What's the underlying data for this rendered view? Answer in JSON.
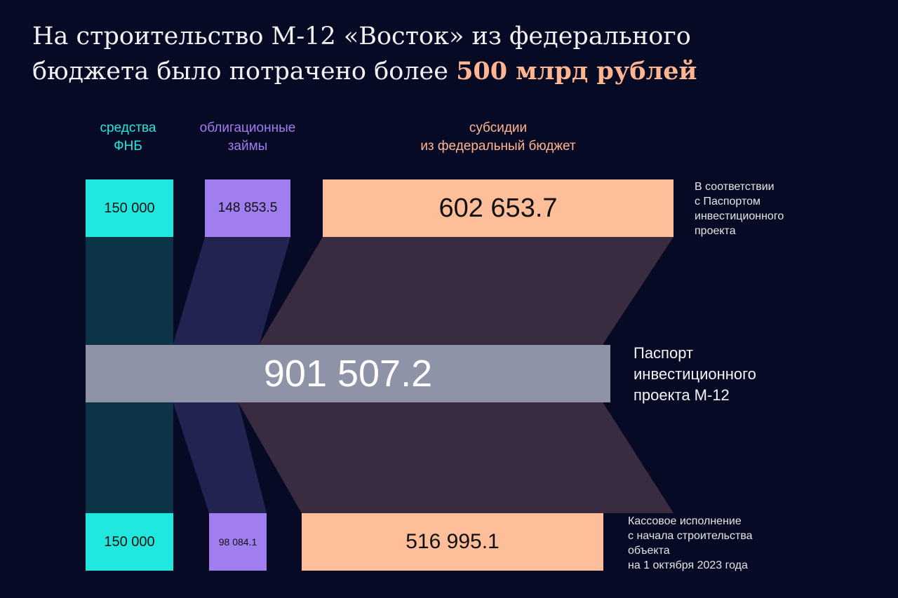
{
  "title": {
    "line1": "На строительство М-12 «Восток» из федерального",
    "line2_prefix": "бюджета было потрачено более ",
    "highlight": "500 млрд рублей"
  },
  "categories": {
    "fnb": {
      "line1": "средства",
      "line2": "ФНБ"
    },
    "bonds": {
      "line1": "облигационные",
      "line2": "займы"
    },
    "subsidies": {
      "line1": "субсидии",
      "line2": "из федеральный бюджет"
    }
  },
  "passport": {
    "fnb": "150 000",
    "bonds": "148 853.5",
    "subsidies": "602 653.7"
  },
  "total": {
    "value": "901 507.2",
    "label_line1": "Паспорт",
    "label_line2": "инвестиционного",
    "label_line3": "проекта М-12"
  },
  "actual": {
    "fnb": "150 000",
    "bonds": "98 084.1",
    "subsidies": "516 995.1"
  },
  "notes": {
    "passport": [
      "В соответствии",
      "с Паспортом",
      "инвестиционного",
      "проекта"
    ],
    "actual": [
      "Кассовое исполнение",
      "с начала строительства",
      "объекта",
      "на 1 октября 2023 года"
    ]
  },
  "colors": {
    "fnb": "#21e8de",
    "bonds": "#a07ef0",
    "subsidies": "#ffbe9a",
    "total": "#8e93a8",
    "flow_fnb": "#0c3447",
    "flow_bonds": "#222350",
    "flow_subsidies": "#3a2c40"
  }
}
